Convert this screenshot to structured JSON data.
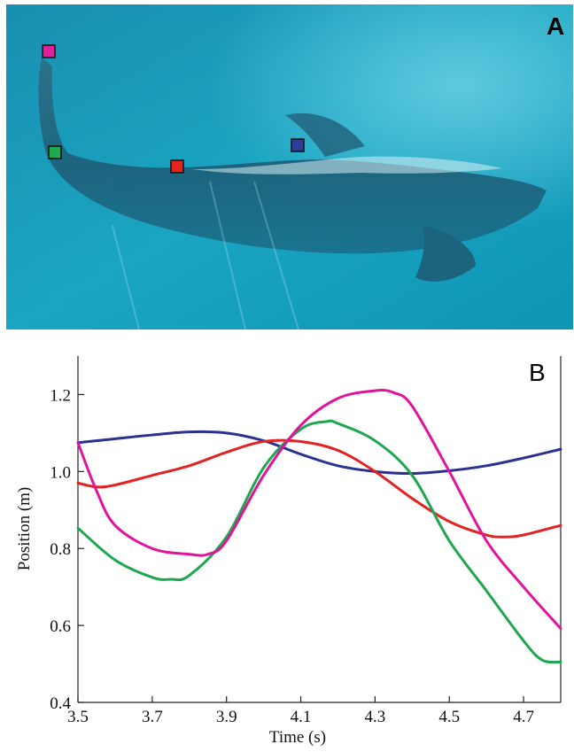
{
  "panel_a": {
    "label": "A",
    "markers": [
      {
        "name": "pink-marker",
        "color": "#e0209a"
      },
      {
        "name": "green-marker",
        "color": "#1faa50"
      },
      {
        "name": "red-marker",
        "color": "#e52420"
      },
      {
        "name": "blue-marker",
        "color": "#2a3d9b"
      }
    ]
  },
  "chart_data": {
    "type": "line",
    "panel_label": "B",
    "xlabel": "Time (s)",
    "ylabel": "Position (m)",
    "xlim": [
      3.5,
      4.8
    ],
    "ylim": [
      0.4,
      1.3
    ],
    "xticks": [
      "3.5",
      "3.7",
      "3.9",
      "4.1",
      "4.3",
      "4.5",
      "4.7"
    ],
    "yticks": [
      "0.4",
      "0.6",
      "0.8",
      "1.0",
      "1.2"
    ],
    "grid": false,
    "series": [
      {
        "color": "#2b3190",
        "x": [
          3.5,
          3.6,
          3.7,
          3.8,
          3.9,
          4.0,
          4.1,
          4.2,
          4.3,
          4.4,
          4.5,
          4.6,
          4.7,
          4.8
        ],
        "y": [
          1.075,
          1.085,
          1.095,
          1.103,
          1.1,
          1.08,
          1.045,
          1.015,
          1.0,
          0.995,
          1.002,
          1.015,
          1.035,
          1.058
        ]
      },
      {
        "color": "#e32222",
        "x": [
          3.5,
          3.55,
          3.6,
          3.7,
          3.8,
          3.9,
          4.0,
          4.1,
          4.2,
          4.3,
          4.4,
          4.5,
          4.6,
          4.65,
          4.7,
          4.8
        ],
        "y": [
          0.97,
          0.96,
          0.965,
          0.99,
          1.015,
          1.05,
          1.078,
          1.078,
          1.055,
          1.0,
          0.93,
          0.87,
          0.835,
          0.83,
          0.835,
          0.86
        ]
      },
      {
        "color": "#1fa650",
        "x": [
          3.5,
          3.6,
          3.7,
          3.75,
          3.8,
          3.9,
          4.0,
          4.1,
          4.17,
          4.2,
          4.3,
          4.4,
          4.5,
          4.6,
          4.7,
          4.75,
          4.8
        ],
        "y": [
          0.853,
          0.77,
          0.725,
          0.72,
          0.73,
          0.83,
          1.01,
          1.11,
          1.13,
          1.125,
          1.08,
          0.99,
          0.82,
          0.69,
          0.56,
          0.51,
          0.505
        ]
      },
      {
        "color": "#e3129a",
        "x": [
          3.5,
          3.55,
          3.6,
          3.7,
          3.8,
          3.85,
          3.9,
          4.0,
          4.1,
          4.2,
          4.3,
          4.35,
          4.4,
          4.5,
          4.6,
          4.7,
          4.8
        ],
        "y": [
          1.075,
          0.95,
          0.86,
          0.8,
          0.785,
          0.785,
          0.82,
          0.99,
          1.12,
          1.19,
          1.21,
          1.205,
          1.17,
          1.0,
          0.82,
          0.7,
          0.592
        ]
      }
    ]
  }
}
